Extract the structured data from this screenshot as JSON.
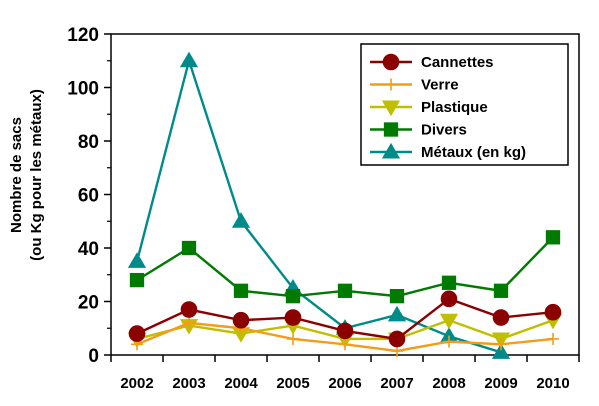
{
  "chart_data": {
    "type": "line",
    "x": [
      "2002",
      "2003",
      "2004",
      "2005",
      "2006",
      "2007",
      "2008",
      "2009",
      "2010"
    ],
    "ylim": [
      0,
      120
    ],
    "yticks": [
      "0",
      "20",
      "40",
      "60",
      "80",
      "100",
      "120"
    ],
    "ylabel_line1": "Nombre de sacs",
    "ylabel_line2": "(ou Kg pour les métaux)",
    "legend_position": "top-right",
    "grid": false,
    "series": [
      {
        "name": "Cannettes",
        "color": "#8B0000",
        "marker": "circle",
        "values": [
          8,
          17,
          13,
          14,
          9,
          6,
          21,
          14,
          16
        ]
      },
      {
        "name": "Verre",
        "color": "#F39C1A",
        "marker": "plus",
        "values": [
          4,
          12,
          10,
          6,
          4,
          1.5,
          5,
          4,
          6
        ]
      },
      {
        "name": "Plastique",
        "color": "#BFBF00",
        "marker": "triangle-down",
        "values": [
          6,
          11,
          8,
          11,
          6,
          6,
          13,
          6,
          13
        ]
      },
      {
        "name": "Divers",
        "color": "#007A00",
        "marker": "square",
        "values": [
          28,
          40,
          24,
          22,
          24,
          22,
          27,
          24,
          44
        ]
      },
      {
        "name": "Métaux (en kg)",
        "color": "#008B8B",
        "marker": "triangle-up",
        "values": [
          35,
          110,
          50,
          25,
          10,
          15,
          7,
          1,
          null
        ]
      }
    ]
  }
}
